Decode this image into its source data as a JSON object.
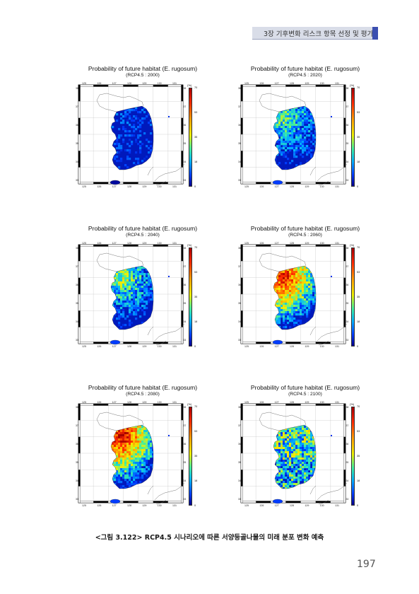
{
  "header": {
    "chapter_title": "3장 기후변화 리스크 항목 선정 및 평가"
  },
  "figure": {
    "panels": [
      {
        "title": "Probability of future habitat (E. rugosum)",
        "subtitle": "(RCP4.5 : 2000)",
        "level": 0.05
      },
      {
        "title": "Probability of future habitat (E. rugosum)",
        "subtitle": "(RCP4.5 : 2020)",
        "level": 0.35
      },
      {
        "title": "Probability of future habitat (E. rugosum)",
        "subtitle": "(RCP4.5 : 2040)",
        "level": 0.4
      },
      {
        "title": "Probability of future habitat (E. rugosum)",
        "subtitle": "(RCP4.5 : 2060)",
        "level": 0.7
      },
      {
        "title": "Probability of future habitat (E. rugosum)",
        "subtitle": "(RCP4.5 : 2080)",
        "level": 0.75
      },
      {
        "title": "Probability of future habitat (E. rugosum)",
        "subtitle": "(RCP4.5 : 2100)",
        "level": 0.5
      }
    ],
    "colorbar": {
      "unit": "(%)",
      "ticks": [
        "70",
        "53",
        "35",
        "18",
        "0"
      ]
    },
    "lon_ticks": [
      "125",
      "126",
      "127",
      "128",
      "129",
      "130",
      "131"
    ],
    "lat_ticks": [
      "38",
      "37",
      "36",
      "35",
      "34",
      "33"
    ],
    "caption": "<그림 3.122> RCP4.5 시나리오에 따른 서양등골나물의 미래 분포 변화 예측"
  },
  "page_number": "197"
}
